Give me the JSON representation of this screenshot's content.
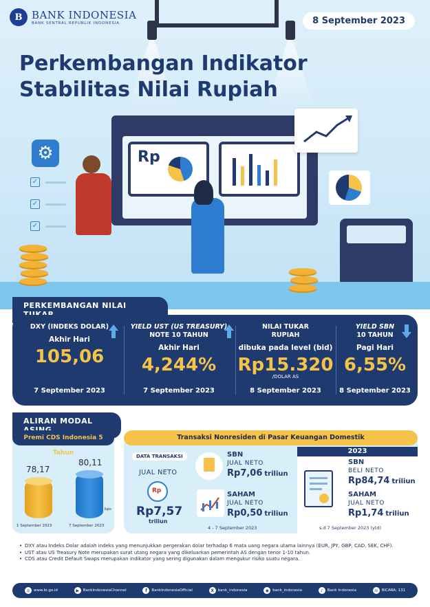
{
  "header": {
    "logo_mark": "B",
    "logo_name": "BANK INDONESIA",
    "logo_sub": "BANK SENTRAL REPUBLIK INDONESIA",
    "date": "8 September 2023",
    "title_line1": "Perkembangan Indikator",
    "title_line2": "Stabilitas Nilai Rupiah"
  },
  "illustration": {
    "rp_label": "Rp",
    "gear_icon": "gear-icon",
    "check_icon": "check-icon"
  },
  "exchange": {
    "section_label": "PERKEMBANGAN NILAI TUKAR",
    "indicators": [
      {
        "heading": "DXY (INDEKS DOLAR)",
        "heading2": "",
        "subtitle": "Akhir Hari",
        "value": "105,06",
        "unit": "",
        "date": "7 September 2023",
        "direction": "up"
      },
      {
        "heading": "YIELD UST (US TREASURY)",
        "heading2": "NOTE 10 TAHUN",
        "subtitle": "Akhir Hari",
        "value": "4,244%",
        "unit": "",
        "date": "7 September 2023",
        "direction": "up"
      },
      {
        "heading": "NILAI TUKAR",
        "heading2": "RUPIAH",
        "subtitle": "dibuka pada level (bid)",
        "value": "Rp15.320",
        "unit": "/DOLAR AS",
        "date": "8 September 2023",
        "direction": "none"
      },
      {
        "heading": "YIELD SBN",
        "heading2": "10 TAHUN",
        "subtitle": "Pagi Hari",
        "value": "6,55%",
        "unit": "",
        "date": "8 September 2023",
        "direction": "down"
      }
    ],
    "colors": {
      "value": "#f5c24a",
      "up_arrow": "#5fa8e6",
      "down_arrow": "#5fa8e6"
    }
  },
  "capital": {
    "section_label": "ALIRAN MODAL ASING",
    "cds": {
      "title": "Premi CDS Indonesia 5 Tahun",
      "before_value": "78,17",
      "after_value": "80,11",
      "unit": "bps",
      "before_date": "1 September 2023",
      "after_date": "7 September 2023"
    },
    "nonresident": {
      "title": "Transaksi Nonresiden di Pasar Keuangan Domestik",
      "data_label": "DATA TRANSAKSI",
      "total_label": "JUAL NETO",
      "total_value": "Rp7,57",
      "total_unit": "triliun",
      "sbn_title": "SBN",
      "sbn_label": "JUAL NETO",
      "sbn_value": "Rp7,06",
      "sbn_unit": "triliun",
      "saham_title": "SAHAM",
      "saham_label": "JUAL NETO",
      "saham_value": "Rp0,50",
      "saham_unit": "triliun",
      "period": "4 - 7 September 2023",
      "ytd_year": "2023",
      "ytd_sbn_title": "SBN",
      "ytd_sbn_label": "BELI NETO",
      "ytd_sbn_value": "Rp84,74",
      "ytd_sbn_unit": "triliun",
      "ytd_saham_title": "SAHAM",
      "ytd_saham_label": "JUAL NETO",
      "ytd_saham_value": "Rp1,74",
      "ytd_saham_unit": "triliun",
      "ytd_period": "s.d 7 September 2023 (ytd)"
    }
  },
  "notes": [
    "DXY atau Indeks Dolar adalah indeks yang menunjukkan pergerakan dolar terhadap 6 mata uang negara utama lainnya (EUR, JPY, GBP, CAD, SEK, CHF).",
    "UST atau US Treasury Note merupakan surat utang negara yang dikeluarkan pemerintah AS dengan tenor 1-10 tahun.",
    "CDS atau Credit Default Swaps merupakan indikator yang sering digunakan dalam mengukur risiko suatu negara."
  ],
  "footer": [
    {
      "icon": "globe-icon",
      "glyph": "◎",
      "text": "www.bi.go.id"
    },
    {
      "icon": "youtube-icon",
      "glyph": "▶",
      "text": "BankIndonesiaChannel"
    },
    {
      "icon": "facebook-icon",
      "glyph": "f",
      "text": "BankIndonesiaOfficial"
    },
    {
      "icon": "x-icon",
      "glyph": "X",
      "text": "bank_indonesia"
    },
    {
      "icon": "instagram-icon",
      "glyph": "◉",
      "text": "bank_indonesia"
    },
    {
      "icon": "tiktok-icon",
      "glyph": "♪",
      "text": "Bank Indonesia"
    },
    {
      "icon": "bicara-icon",
      "glyph": "☏",
      "text": "BICARA: 131"
    }
  ]
}
